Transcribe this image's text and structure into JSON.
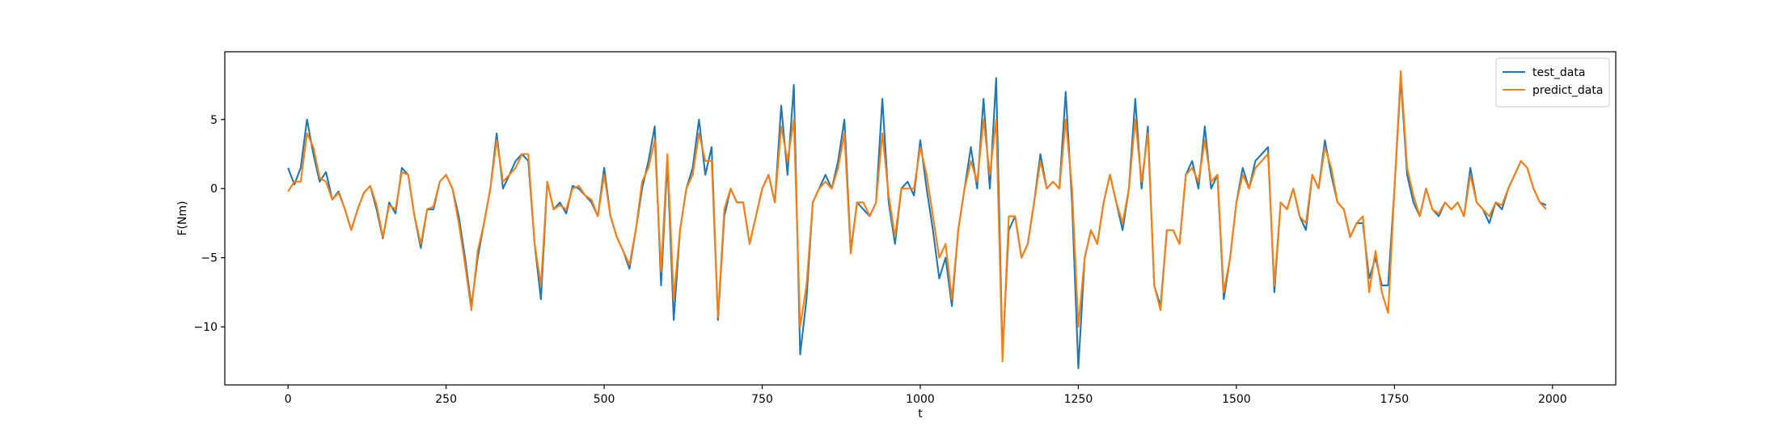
{
  "chart_data": {
    "type": "line",
    "xlabel": "t",
    "ylabel": "F(Nm)",
    "xlim": [
      -100,
      2100
    ],
    "ylim": [
      -14.2,
      9.9
    ],
    "xticks": [
      0,
      250,
      500,
      750,
      1000,
      1250,
      1500,
      1750,
      2000
    ],
    "yticks": [
      {
        "value": -10,
        "label": "−10"
      },
      {
        "value": -5,
        "label": "−5"
      },
      0,
      5
    ],
    "legend": "upper right",
    "x": [
      0,
      10,
      20,
      30,
      40,
      50,
      60,
      70,
      80,
      90,
      100,
      110,
      120,
      130,
      140,
      150,
      160,
      170,
      180,
      190,
      200,
      210,
      220,
      230,
      240,
      250,
      260,
      270,
      280,
      290,
      300,
      310,
      320,
      330,
      340,
      350,
      360,
      370,
      380,
      390,
      400,
      410,
      420,
      430,
      440,
      450,
      460,
      470,
      480,
      490,
      500,
      510,
      520,
      530,
      540,
      550,
      560,
      570,
      580,
      590,
      600,
      610,
      620,
      630,
      640,
      650,
      660,
      670,
      680,
      690,
      700,
      710,
      720,
      730,
      740,
      750,
      760,
      770,
      780,
      790,
      800,
      810,
      820,
      830,
      840,
      850,
      860,
      870,
      880,
      890,
      900,
      910,
      920,
      930,
      940,
      950,
      960,
      970,
      980,
      990,
      1000,
      1010,
      1020,
      1030,
      1040,
      1050,
      1060,
      1070,
      1080,
      1090,
      1100,
      1110,
      1120,
      1130,
      1140,
      1150,
      1160,
      1170,
      1180,
      1190,
      1200,
      1210,
      1220,
      1230,
      1240,
      1250,
      1260,
      1270,
      1280,
      1290,
      1300,
      1310,
      1320,
      1330,
      1340,
      1350,
      1360,
      1370,
      1380,
      1390,
      1400,
      1410,
      1420,
      1430,
      1440,
      1450,
      1460,
      1470,
      1480,
      1490,
      1500,
      1510,
      1520,
      1530,
      1540,
      1550,
      1560,
      1570,
      1580,
      1590,
      1600,
      1610,
      1620,
      1630,
      1640,
      1650,
      1660,
      1670,
      1680,
      1690,
      1700,
      1710,
      1720,
      1730,
      1740,
      1750,
      1760,
      1770,
      1780,
      1790,
      1800,
      1810,
      1820,
      1830,
      1840,
      1850,
      1860,
      1870,
      1880,
      1890,
      1900,
      1910,
      1920,
      1930,
      1940,
      1950,
      1960,
      1970,
      1980,
      1990
    ],
    "series": [
      {
        "name": "test_data",
        "color": "#1f77b4",
        "values": [
          1.5,
          0.3,
          1.5,
          5.0,
          2.5,
          0.5,
          1.2,
          -0.8,
          -0.2,
          -1.5,
          -3,
          -1.5,
          -0.3,
          0.2,
          -1.5,
          -3.6,
          -1,
          -1.8,
          1.5,
          1,
          -2,
          -4.3,
          -1.5,
          -1.5,
          0.5,
          1,
          0,
          -2,
          -5,
          -8.5,
          -5,
          -2.5,
          0,
          4,
          0,
          1,
          2,
          2.5,
          2,
          -4,
          -8,
          0.5,
          -1.5,
          -1,
          -1.8,
          0.2,
          0,
          -0.5,
          -1,
          -2,
          1.5,
          -2,
          -3.5,
          -4.5,
          -5.8,
          -3,
          0,
          2,
          4.5,
          -7,
          2,
          -9.5,
          -3,
          0,
          1.5,
          5,
          1,
          3,
          -9.5,
          -2,
          0,
          -1,
          -1,
          -4,
          -2,
          0,
          1,
          -1,
          6,
          1,
          7.5,
          -12,
          -8,
          -1,
          0,
          1,
          0,
          2,
          5,
          -4.5,
          -1,
          -1.5,
          -2,
          -1,
          6.5,
          -1,
          -4,
          0,
          0.5,
          -0.5,
          3.5,
          0,
          -3,
          -6.5,
          -5,
          -8.5,
          -3,
          0,
          3,
          0,
          6.5,
          0,
          8,
          -12,
          -3,
          -2,
          -5,
          -4,
          -1,
          2.5,
          0,
          0.5,
          0,
          7,
          -1,
          -13,
          -5,
          -3,
          -4,
          -1,
          1,
          -1,
          -3,
          0,
          6.5,
          0,
          4.5,
          -7,
          -8.5,
          -3,
          -3,
          -4,
          1,
          2,
          0,
          4.5,
          0,
          1,
          -8,
          -5,
          -1,
          1.5,
          0,
          2,
          2.5,
          3,
          -7.5,
          -1,
          -1.5,
          0,
          -2,
          -3,
          1,
          0,
          3.5,
          1,
          -1,
          -1.5,
          -3.5,
          -2.5,
          -2.5,
          -6.5,
          -5,
          -7,
          -7,
          0,
          8,
          1,
          -1,
          -2,
          0,
          -1.5,
          -2,
          -1,
          -1.5,
          -1,
          -2,
          1.5,
          -1,
          -1.5,
          -2.5,
          -1,
          -1.5,
          0,
          1,
          2,
          1.5,
          0,
          -1,
          -1.2
        ]
      },
      {
        "name": "predict_data",
        "color": "#ff7f0e",
        "values": [
          -0.2,
          0.5,
          0.5,
          4.0,
          3,
          0.8,
          0.5,
          -0.8,
          -0.3,
          -1.5,
          -3,
          -1.5,
          -0.3,
          0.2,
          -1.2,
          -3.5,
          -1.2,
          -1.5,
          1.2,
          1,
          -2,
          -4,
          -1.5,
          -1.3,
          0.5,
          1,
          0,
          -2.5,
          -5.5,
          -8.8,
          -4.5,
          -2.5,
          0,
          3.5,
          0.5,
          1,
          1.5,
          2.5,
          2.5,
          -4,
          -7,
          0.5,
          -1.5,
          -1.2,
          -1.5,
          0,
          0.2,
          -0.5,
          -0.8,
          -2,
          1,
          -2,
          -3.5,
          -4.5,
          -5.5,
          -3,
          0.5,
          1.5,
          3.5,
          -6,
          2.5,
          -8,
          -3,
          0,
          1,
          4,
          2,
          2,
          -9.3,
          -1.5,
          0,
          -1,
          -1,
          -4,
          -2,
          0,
          1,
          -1,
          4.5,
          2,
          5,
          -10,
          -7,
          -1,
          0,
          0.5,
          0,
          1.5,
          4,
          -4.7,
          -1,
          -1,
          -2,
          -1,
          4,
          -0.5,
          -3.5,
          0,
          0,
          0,
          3,
          1,
          -2,
          -5,
          -4,
          -8,
          -3,
          0,
          2,
          0.5,
          5,
          1,
          5,
          -12.5,
          -2,
          -2,
          -5,
          -4,
          -1,
          2,
          0,
          0.5,
          0,
          5,
          0,
          -10,
          -5,
          -3,
          -4,
          -1,
          1,
          -1,
          -2.5,
          0,
          5,
          0.5,
          4,
          -7,
          -8.8,
          -3,
          -3,
          -4,
          1,
          1.5,
          0.5,
          3.5,
          0.5,
          1,
          -7.5,
          -5,
          -1,
          1,
          0,
          1.5,
          2,
          2.5,
          -7,
          -1,
          -1.5,
          0,
          -2,
          -2.5,
          1,
          0,
          3,
          1.5,
          -1,
          -1.5,
          -3.5,
          -2.5,
          -2,
          -7.5,
          -4.5,
          -7.5,
          -9,
          0,
          8.5,
          1.5,
          -0.5,
          -2,
          0,
          -1.5,
          -1.8,
          -1,
          -1.5,
          -1,
          -2,
          1,
          -1,
          -1.5,
          -2,
          -1,
          -1.2,
          0,
          1,
          2,
          1.5,
          0,
          -1,
          -1.5
        ]
      }
    ]
  }
}
